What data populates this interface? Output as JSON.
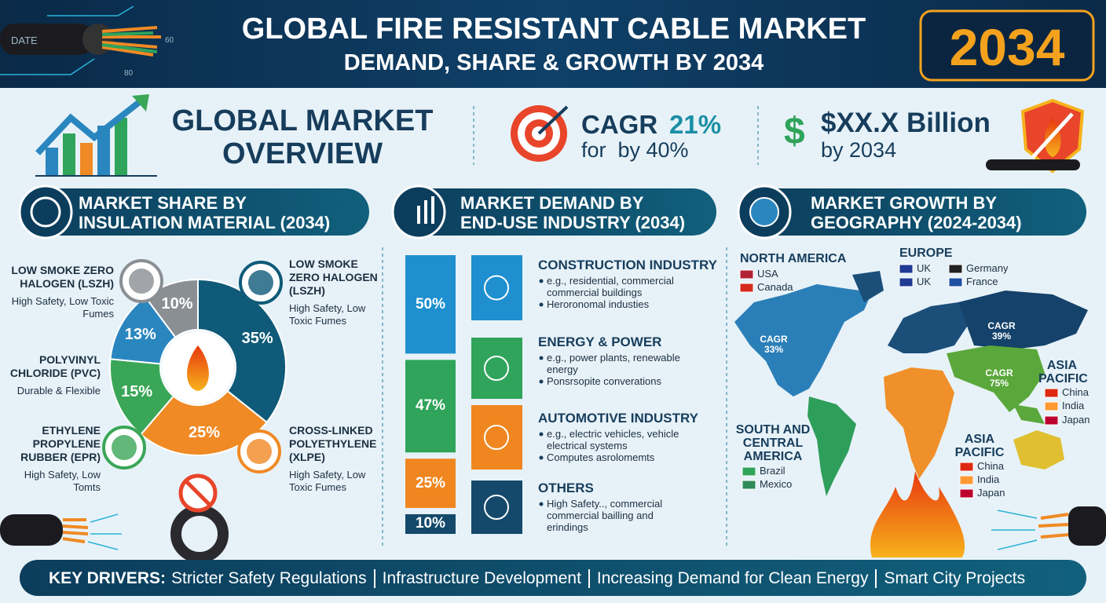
{
  "header": {
    "title": "GLOBAL FIRE RESISTANT CABLE MARKET",
    "subtitle": "DEMAND, SHARE & GROWTH BY 2034",
    "badge": "2034",
    "cable_texts": [
      "DATE",
      "60",
      "80"
    ]
  },
  "overview": {
    "title_lines": [
      "GLOBAL MARKET",
      "OVERVIEW"
    ],
    "cagr_label": "CAGR",
    "cagr_value": "21%",
    "cagr_note": "for  by 40%",
    "size_value": "$XX.X Billion",
    "size_note": "by 2034"
  },
  "sections": [
    {
      "title_lines": [
        "MARKET SHARE BY",
        "INSULATION MATERIAL (2034)"
      ]
    },
    {
      "title_lines": [
        "MARKET DEMAND BY",
        "END-USE INDUSTRY (2034)"
      ]
    },
    {
      "title_lines": [
        "MARKET GROWTH BY",
        "GEOGRAPHY (2024-2034)"
      ]
    }
  ],
  "insulation_share": {
    "materials": [
      {
        "name": "LOW SMOKE ZERO HALOGEN (LSZH)",
        "note": "High Safety, Low Toxic Fumes",
        "value": 35,
        "value_label": "35%",
        "color": "#0f5a78"
      },
      {
        "name": "CROSS-LINKED POLYETHYLENE (XLPE)",
        "note": "High Safety, Low Toxic Fumes",
        "value": 25,
        "value_label": "25%",
        "color": "#f08a24"
      },
      {
        "name": "ETHYLENE PROPYLENE RUBBER (EPR)",
        "note": "High Safety, Low Tomts",
        "value": 15,
        "value_label": "15%",
        "color": "#3aa657"
      },
      {
        "name": "POLYVINYL CHLORIDE (PVC)",
        "note": "Durable & Flexible",
        "value": 13,
        "value_label": "13%",
        "color": "#2a86bf"
      },
      {
        "name": "LOW SMOKE ZERO HALOGEN (LSZH)",
        "note": "High Safety, Low Toxic Fumes",
        "value": 10,
        "value_label": "10%",
        "color": "#8a8f94"
      }
    ]
  },
  "industries": [
    {
      "name": "CONSTRUCTION INDUSTRY",
      "value": 50,
      "value_label": "50%",
      "color": "#1f8fcf",
      "bullets": [
        "e.g., residential, commercial commercial buildings",
        "Heroronomal industies"
      ]
    },
    {
      "name": "ENERGY & POWER",
      "value": 47,
      "value_label": "47%",
      "color": "#2fa45a",
      "bullets": [
        "e.g., power plants, renewable energy",
        "Ponsrsopite converations"
      ]
    },
    {
      "name": "AUTOMOTIVE INDUSTRY",
      "value": 25,
      "value_label": "25%",
      "color": "#f0861f",
      "bullets": [
        "e.g., electric vehicles, vehicle electrical systems",
        "Computes asrolomemts"
      ]
    },
    {
      "name": "OTHERS",
      "value": 10,
      "value_label": "10%",
      "color": "#14496b",
      "bullets": [
        "High Safety.., commercial commercial bailling and erindings"
      ]
    }
  ],
  "geography": {
    "regions": [
      {
        "name": "NORTH AMERICA",
        "countries": [
          "USA",
          "Canada"
        ]
      },
      {
        "name": "EUROPE",
        "countries": [
          "UK",
          "UK",
          "Germany",
          "France"
        ]
      },
      {
        "name": "SOUTH AND CENTRAL AMERICA",
        "countries": [
          "Brazil",
          "Mexico"
        ]
      },
      {
        "name": "ASIA PACIFIC",
        "countries": [
          "China",
          "India",
          "Japan"
        ]
      },
      {
        "name": "ASIA PACIFIC",
        "countries": [
          "China",
          "India",
          "Japan"
        ]
      }
    ],
    "cagr_labels": [
      {
        "label": "CAGR",
        "value": "33%"
      },
      {
        "label": "CAGR",
        "value": "39%"
      },
      {
        "label": "CAGR",
        "value": "75%"
      }
    ]
  },
  "footer": {
    "label": "KEY DRIVERS:",
    "drivers": [
      "Stricter Safety Regulations",
      "Infrastructure Development",
      "Increasing Demand for Clean Energy",
      "Smart City Projects"
    ]
  }
}
